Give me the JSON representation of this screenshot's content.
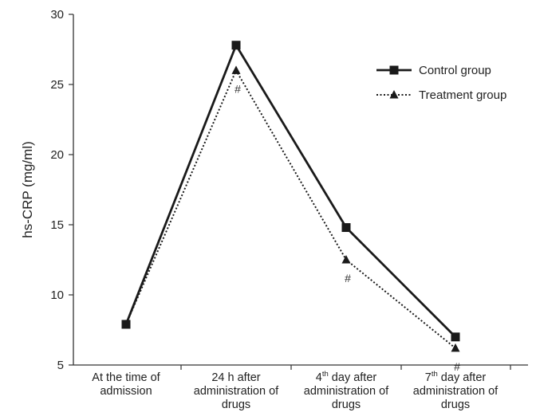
{
  "chart_data": {
    "type": "line",
    "title": "",
    "xlabel": "",
    "ylabel": "hs-CRP (mg/ml)",
    "ylim": [
      5,
      30
    ],
    "yticks": [
      "5",
      "10",
      "15",
      "20",
      "25",
      "30"
    ],
    "categories": [
      [
        "At the time of",
        "admission"
      ],
      [
        "24 h after",
        "administration of",
        "drugs"
      ],
      [
        "4th day after",
        "administration of",
        "drugs"
      ],
      [
        "7th day after",
        "administration of",
        "drugs"
      ]
    ],
    "series": [
      {
        "name": "Control group",
        "values": [
          7.9,
          27.8,
          14.8,
          7.0
        ],
        "style": "solid",
        "marker": "square",
        "color": "#1a1a1a"
      },
      {
        "name": "Treatment group",
        "values": [
          7.9,
          26.0,
          12.5,
          6.2
        ],
        "style": "dotted",
        "marker": "triangle",
        "color": "#1a1a1a"
      }
    ],
    "annotations": [
      {
        "category": 1,
        "text": "#"
      },
      {
        "category": 2,
        "text": "#"
      },
      {
        "category": 3,
        "text": "#"
      }
    ],
    "legend_position": "top-right",
    "grid": false
  }
}
